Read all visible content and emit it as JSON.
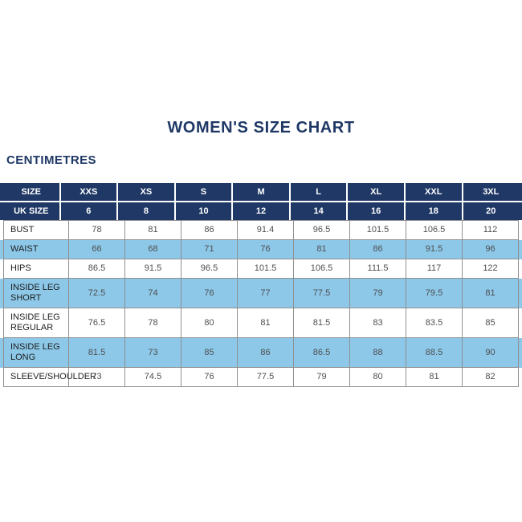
{
  "header": {
    "title": "WOMEN'S SIZE CHART",
    "unit_label": "CENTIMETRES"
  },
  "colors": {
    "navy": "#1f3865",
    "light_blue": "#8dc8e9",
    "grid_gray": "#8f8f8f",
    "title_text": "#1f3865",
    "value_text": "#4f4f4f"
  },
  "chart_data": {
    "type": "table",
    "title": "WOMEN'S SIZE CHART",
    "unit": "CENTIMETRES",
    "columns": [
      "SIZE",
      "XXS",
      "XS",
      "S",
      "M",
      "L",
      "XL",
      "XXL",
      "3XL"
    ],
    "rows": [
      {
        "label": "UK SIZE",
        "style": "navy",
        "values": [
          "6",
          "8",
          "10",
          "12",
          "14",
          "16",
          "18",
          "20"
        ]
      },
      {
        "label": "BUST",
        "style": "white",
        "values": [
          "78",
          "81",
          "86",
          "91.4",
          "96.5",
          "101.5",
          "106.5",
          "112"
        ]
      },
      {
        "label": "WAIST",
        "style": "blue",
        "values": [
          "66",
          "68",
          "71",
          "76",
          "81",
          "86",
          "91.5",
          "96"
        ]
      },
      {
        "label": "HIPS",
        "style": "white",
        "values": [
          "86.5",
          "91.5",
          "96.5",
          "101.5",
          "106.5",
          "111.5",
          "117",
          "122"
        ]
      },
      {
        "label": "INSIDE LEG SHORT",
        "style": "blue",
        "values": [
          "72.5",
          "74",
          "76",
          "77",
          "77.5",
          "79",
          "79.5",
          "81"
        ]
      },
      {
        "label": "INSIDE LEG REGULAR",
        "style": "white",
        "values": [
          "76.5",
          "78",
          "80",
          "81",
          "81.5",
          "83",
          "83.5",
          "85"
        ]
      },
      {
        "label": "INSIDE LEG LONG",
        "style": "blue",
        "values": [
          "81.5",
          "73",
          "85",
          "86",
          "86.5",
          "88",
          "88.5",
          "90"
        ]
      },
      {
        "label": "SLEEVE/SHOULDER",
        "style": "white",
        "values": [
          "73",
          "74.5",
          "76",
          "77.5",
          "79",
          "80",
          "81",
          "82"
        ]
      }
    ]
  }
}
